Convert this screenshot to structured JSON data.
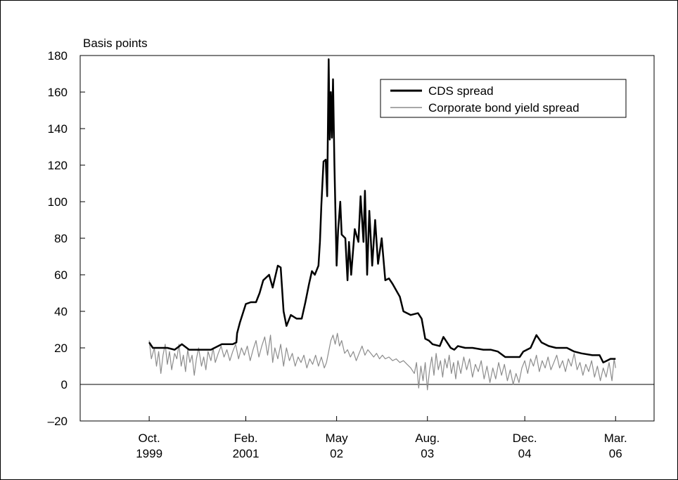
{
  "chart_data": {
    "type": "line",
    "ylabel": "Basis points",
    "ylim": [
      -20,
      180
    ],
    "yticks": [
      -20,
      0,
      20,
      40,
      60,
      80,
      100,
      120,
      140,
      160,
      180
    ],
    "ytick_labels": [
      "–20",
      "0",
      "20",
      "40",
      "60",
      "80",
      "100",
      "120",
      "140",
      "160",
      "180"
    ],
    "xlim": [
      1998.8,
      2006.7
    ],
    "xticks": [
      {
        "x": 1999.75,
        "line1": "Oct.",
        "line2": "1999"
      },
      {
        "x": 2001.08,
        "line1": "Feb.",
        "line2": "2001"
      },
      {
        "x": 2002.33,
        "line1": "May",
        "line2": "02"
      },
      {
        "x": 2003.58,
        "line1": "Aug.",
        "line2": "03"
      },
      {
        "x": 2004.92,
        "line1": "Dec.",
        "line2": "04"
      },
      {
        "x": 2006.17,
        "line1": "Mar.",
        "line2": "06"
      }
    ],
    "zero_line": true,
    "grid": false,
    "legend_position": "top-right",
    "series": [
      {
        "name": "CDS spread",
        "color": "#000000",
        "points": [
          [
            1999.75,
            23
          ],
          [
            1999.8,
            20
          ],
          [
            1999.9,
            20
          ],
          [
            2000.0,
            20
          ],
          [
            2000.1,
            19
          ],
          [
            2000.2,
            22
          ],
          [
            2000.3,
            19
          ],
          [
            2000.45,
            19
          ],
          [
            2000.6,
            19
          ],
          [
            2000.75,
            22
          ],
          [
            2000.9,
            22
          ],
          [
            2000.95,
            23
          ],
          [
            2000.96,
            28
          ],
          [
            2001.0,
            34
          ],
          [
            2001.08,
            44
          ],
          [
            2001.15,
            45
          ],
          [
            2001.22,
            45
          ],
          [
            2001.27,
            50
          ],
          [
            2001.32,
            57
          ],
          [
            2001.4,
            60
          ],
          [
            2001.45,
            53
          ],
          [
            2001.52,
            65
          ],
          [
            2001.56,
            64
          ],
          [
            2001.6,
            40
          ],
          [
            2001.64,
            32
          ],
          [
            2001.7,
            38
          ],
          [
            2001.78,
            36
          ],
          [
            2001.85,
            36
          ],
          [
            2001.9,
            45
          ],
          [
            2001.95,
            55
          ],
          [
            2001.99,
            62
          ],
          [
            2002.03,
            60
          ],
          [
            2002.08,
            65
          ],
          [
            2002.1,
            78
          ],
          [
            2002.12,
            98
          ],
          [
            2002.15,
            122
          ],
          [
            2002.18,
            123
          ],
          [
            2002.2,
            103
          ],
          [
            2002.22,
            178
          ],
          [
            2002.235,
            134
          ],
          [
            2002.25,
            160
          ],
          [
            2002.265,
            135
          ],
          [
            2002.28,
            167
          ],
          [
            2002.3,
            120
          ],
          [
            2002.33,
            65
          ],
          [
            2002.35,
            84
          ],
          [
            2002.38,
            100
          ],
          [
            2002.4,
            82
          ],
          [
            2002.45,
            80
          ],
          [
            2002.48,
            57
          ],
          [
            2002.5,
            78
          ],
          [
            2002.53,
            60
          ],
          [
            2002.58,
            85
          ],
          [
            2002.63,
            78
          ],
          [
            2002.66,
            103
          ],
          [
            2002.7,
            78
          ],
          [
            2002.72,
            106
          ],
          [
            2002.75,
            60
          ],
          [
            2002.78,
            95
          ],
          [
            2002.82,
            65
          ],
          [
            2002.86,
            90
          ],
          [
            2002.9,
            66
          ],
          [
            2002.95,
            80
          ],
          [
            2003.0,
            57
          ],
          [
            2003.05,
            58
          ],
          [
            2003.1,
            55
          ],
          [
            2003.2,
            48
          ],
          [
            2003.25,
            40
          ],
          [
            2003.35,
            38
          ],
          [
            2003.45,
            39
          ],
          [
            2003.5,
            36
          ],
          [
            2003.55,
            25
          ],
          [
            2003.6,
            24
          ],
          [
            2003.65,
            22
          ],
          [
            2003.75,
            21
          ],
          [
            2003.8,
            26
          ],
          [
            2003.9,
            20
          ],
          [
            2003.95,
            19
          ],
          [
            2004.0,
            21
          ],
          [
            2004.1,
            20
          ],
          [
            2004.2,
            20
          ],
          [
            2004.35,
            19
          ],
          [
            2004.45,
            19
          ],
          [
            2004.55,
            18
          ],
          [
            2004.65,
            15
          ],
          [
            2004.75,
            15
          ],
          [
            2004.85,
            15
          ],
          [
            2004.9,
            18
          ],
          [
            2005.0,
            20
          ],
          [
            2005.08,
            27
          ],
          [
            2005.15,
            23
          ],
          [
            2005.25,
            21
          ],
          [
            2005.35,
            20
          ],
          [
            2005.5,
            20
          ],
          [
            2005.6,
            18
          ],
          [
            2005.7,
            17
          ],
          [
            2005.85,
            16
          ],
          [
            2005.95,
            16
          ],
          [
            2006.0,
            12
          ],
          [
            2006.05,
            13
          ],
          [
            2006.1,
            14
          ],
          [
            2006.17,
            14
          ]
        ]
      },
      {
        "name": "Corporate bond yield spread",
        "color": "#8c8c8c",
        "points": [
          [
            1999.75,
            24
          ],
          [
            1999.78,
            14
          ],
          [
            1999.82,
            20
          ],
          [
            1999.85,
            10
          ],
          [
            1999.88,
            18
          ],
          [
            1999.91,
            6
          ],
          [
            1999.94,
            16
          ],
          [
            1999.97,
            22
          ],
          [
            2000.0,
            11
          ],
          [
            2000.03,
            18
          ],
          [
            2000.06,
            8
          ],
          [
            2000.1,
            17
          ],
          [
            2000.13,
            14
          ],
          [
            2000.16,
            22
          ],
          [
            2000.19,
            10
          ],
          [
            2000.22,
            16
          ],
          [
            2000.25,
            7
          ],
          [
            2000.28,
            19
          ],
          [
            2000.31,
            12
          ],
          [
            2000.34,
            16
          ],
          [
            2000.37,
            5
          ],
          [
            2000.4,
            14
          ],
          [
            2000.43,
            20
          ],
          [
            2000.47,
            10
          ],
          [
            2000.5,
            15
          ],
          [
            2000.53,
            8
          ],
          [
            2000.56,
            18
          ],
          [
            2000.6,
            13
          ],
          [
            2000.63,
            20
          ],
          [
            2000.66,
            12
          ],
          [
            2000.7,
            17
          ],
          [
            2000.74,
            21
          ],
          [
            2000.78,
            15
          ],
          [
            2000.82,
            19
          ],
          [
            2000.86,
            13
          ],
          [
            2000.9,
            18
          ],
          [
            2000.94,
            22
          ],
          [
            2000.98,
            14
          ],
          [
            2001.02,
            20
          ],
          [
            2001.06,
            16
          ],
          [
            2001.1,
            21
          ],
          [
            2001.14,
            13
          ],
          [
            2001.18,
            19
          ],
          [
            2001.22,
            24
          ],
          [
            2001.26,
            15
          ],
          [
            2001.3,
            21
          ],
          [
            2001.34,
            26
          ],
          [
            2001.38,
            16
          ],
          [
            2001.42,
            27
          ],
          [
            2001.45,
            12
          ],
          [
            2001.48,
            20
          ],
          [
            2001.52,
            14
          ],
          [
            2001.56,
            22
          ],
          [
            2001.6,
            10
          ],
          [
            2001.64,
            20
          ],
          [
            2001.68,
            13
          ],
          [
            2001.72,
            17
          ],
          [
            2001.76,
            10
          ],
          [
            2001.8,
            15
          ],
          [
            2001.84,
            12
          ],
          [
            2001.88,
            16
          ],
          [
            2001.92,
            9
          ],
          [
            2001.96,
            14
          ],
          [
            2002.0,
            11
          ],
          [
            2002.04,
            16
          ],
          [
            2002.08,
            10
          ],
          [
            2002.12,
            15
          ],
          [
            2002.16,
            9
          ],
          [
            2002.19,
            12
          ],
          [
            2002.22,
            18
          ],
          [
            2002.25,
            24
          ],
          [
            2002.28,
            27
          ],
          [
            2002.31,
            22
          ],
          [
            2002.34,
            28
          ],
          [
            2002.37,
            21
          ],
          [
            2002.4,
            24
          ],
          [
            2002.44,
            17
          ],
          [
            2002.48,
            19
          ],
          [
            2002.52,
            15
          ],
          [
            2002.56,
            18
          ],
          [
            2002.6,
            13
          ],
          [
            2002.64,
            17
          ],
          [
            2002.68,
            21
          ],
          [
            2002.72,
            16
          ],
          [
            2002.76,
            19
          ],
          [
            2002.8,
            17
          ],
          [
            2002.84,
            15
          ],
          [
            2002.88,
            17
          ],
          [
            2002.92,
            14
          ],
          [
            2002.96,
            16
          ],
          [
            2003.0,
            14
          ],
          [
            2003.05,
            15
          ],
          [
            2003.1,
            13
          ],
          [
            2003.15,
            14
          ],
          [
            2003.2,
            12
          ],
          [
            2003.25,
            13
          ],
          [
            2003.3,
            11
          ],
          [
            2003.35,
            9
          ],
          [
            2003.4,
            6
          ],
          [
            2003.43,
            12
          ],
          [
            2003.46,
            -2
          ],
          [
            2003.49,
            10
          ],
          [
            2003.52,
            2
          ],
          [
            2003.55,
            12
          ],
          [
            2003.58,
            -3
          ],
          [
            2003.61,
            8
          ],
          [
            2003.64,
            15
          ],
          [
            2003.67,
            5
          ],
          [
            2003.7,
            17
          ],
          [
            2003.73,
            8
          ],
          [
            2003.76,
            13
          ],
          [
            2003.79,
            4
          ],
          [
            2003.82,
            14
          ],
          [
            2003.85,
            9
          ],
          [
            2003.88,
            16
          ],
          [
            2003.91,
            6
          ],
          [
            2003.94,
            12
          ],
          [
            2003.97,
            3
          ],
          [
            2004.0,
            13
          ],
          [
            2004.04,
            6
          ],
          [
            2004.08,
            15
          ],
          [
            2004.12,
            8
          ],
          [
            2004.16,
            14
          ],
          [
            2004.2,
            4
          ],
          [
            2004.24,
            11
          ],
          [
            2004.28,
            7
          ],
          [
            2004.32,
            13
          ],
          [
            2004.36,
            3
          ],
          [
            2004.4,
            10
          ],
          [
            2004.44,
            1
          ],
          [
            2004.48,
            9
          ],
          [
            2004.52,
            3
          ],
          [
            2004.56,
            12
          ],
          [
            2004.6,
            5
          ],
          [
            2004.64,
            11
          ],
          [
            2004.68,
            2
          ],
          [
            2004.72,
            8
          ],
          [
            2004.76,
            0
          ],
          [
            2004.8,
            6
          ],
          [
            2004.84,
            1
          ],
          [
            2004.88,
            9
          ],
          [
            2004.92,
            13
          ],
          [
            2004.96,
            6
          ],
          [
            2005.0,
            14
          ],
          [
            2005.04,
            10
          ],
          [
            2005.08,
            16
          ],
          [
            2005.12,
            7
          ],
          [
            2005.16,
            13
          ],
          [
            2005.2,
            9
          ],
          [
            2005.24,
            15
          ],
          [
            2005.28,
            8
          ],
          [
            2005.32,
            12
          ],
          [
            2005.36,
            16
          ],
          [
            2005.4,
            9
          ],
          [
            2005.44,
            13
          ],
          [
            2005.48,
            7
          ],
          [
            2005.52,
            14
          ],
          [
            2005.56,
            10
          ],
          [
            2005.6,
            17
          ],
          [
            2005.64,
            8
          ],
          [
            2005.68,
            12
          ],
          [
            2005.72,
            5
          ],
          [
            2005.76,
            11
          ],
          [
            2005.8,
            7
          ],
          [
            2005.84,
            13
          ],
          [
            2005.88,
            4
          ],
          [
            2005.92,
            10
          ],
          [
            2005.96,
            2
          ],
          [
            2006.0,
            9
          ],
          [
            2006.04,
            4
          ],
          [
            2006.08,
            12
          ],
          [
            2006.12,
            2
          ],
          [
            2006.15,
            14
          ],
          [
            2006.17,
            9
          ]
        ]
      }
    ]
  }
}
